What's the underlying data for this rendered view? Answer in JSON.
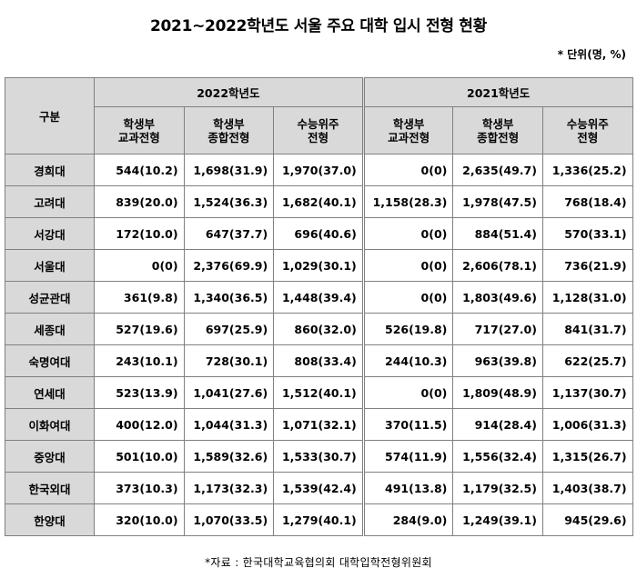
{
  "title": "2021~2022학년도 서울 주요 대학 입시 전형 현황",
  "unit": "* 단위(명, %)",
  "header": {
    "category": "구분",
    "year_2022": "2022학년도",
    "year_2021": "2021학년도",
    "types": [
      {
        "line1": "학생부",
        "line2": "교과전형"
      },
      {
        "line1": "학생부",
        "line2": "종합전형"
      },
      {
        "line1": "수능위주",
        "line2": "전형"
      },
      {
        "line1": "학생부",
        "line2": "교과전형"
      },
      {
        "line1": "학생부",
        "line2": "종합전형"
      },
      {
        "line1": "수능위주",
        "line2": "전형"
      }
    ]
  },
  "rows": [
    {
      "name": "경희대",
      "values": [
        "544(10.2)",
        "1,698(31.9)",
        "1,970(37.0)",
        "0(0)",
        "2,635(49.7)",
        "1,336(25.2)"
      ]
    },
    {
      "name": "고려대",
      "values": [
        "839(20.0)",
        "1,524(36.3)",
        "1,682(40.1)",
        "1,158(28.3)",
        "1,978(47.5)",
        "768(18.4)"
      ]
    },
    {
      "name": "서강대",
      "values": [
        "172(10.0)",
        "647(37.7)",
        "696(40.6)",
        "0(0)",
        "884(51.4)",
        "570(33.1)"
      ]
    },
    {
      "name": "서울대",
      "values": [
        "0(0)",
        "2,376(69.9)",
        "1,029(30.1)",
        "0(0)",
        "2,606(78.1)",
        "736(21.9)"
      ]
    },
    {
      "name": "성균관대",
      "values": [
        "361(9.8)",
        "1,340(36.5)",
        "1,448(39.4)",
        "0(0)",
        "1,803(49.6)",
        "1,128(31.0)"
      ]
    },
    {
      "name": "세종대",
      "values": [
        "527(19.6)",
        "697(25.9)",
        "860(32.0)",
        "526(19.8)",
        "717(27.0)",
        "841(31.7)"
      ]
    },
    {
      "name": "숙명여대",
      "values": [
        "243(10.1)",
        "728(30.1)",
        "808(33.4)",
        "244(10.3)",
        "963(39.8)",
        "622(25.7)"
      ]
    },
    {
      "name": "연세대",
      "values": [
        "523(13.9)",
        "1,041(27.6)",
        "1,512(40.1)",
        "0(0)",
        "1,809(48.9)",
        "1,137(30.7)"
      ]
    },
    {
      "name": "이화여대",
      "values": [
        "400(12.0)",
        "1,044(31.3)",
        "1,071(32.1)",
        "370(11.5)",
        "914(28.4)",
        "1,006(31.3)"
      ]
    },
    {
      "name": "중앙대",
      "values": [
        "501(10.0)",
        "1,589(32.6)",
        "1,533(30.7)",
        "574(11.9)",
        "1,556(32.4)",
        "1,315(26.7)"
      ]
    },
    {
      "name": "한국외대",
      "values": [
        "373(10.3)",
        "1,173(32.3)",
        "1,539(42.4)",
        "491(13.8)",
        "1,179(32.5)",
        "1,403(38.7)"
      ]
    },
    {
      "name": "한양대",
      "values": [
        "320(10.0)",
        "1,070(33.5)",
        "1,279(40.1)",
        "284(9.0)",
        "1,249(39.1)",
        "945(29.6)"
      ]
    }
  ],
  "footer": "*자료 : 한국대학교육협의회 대학입학전형위원회"
}
